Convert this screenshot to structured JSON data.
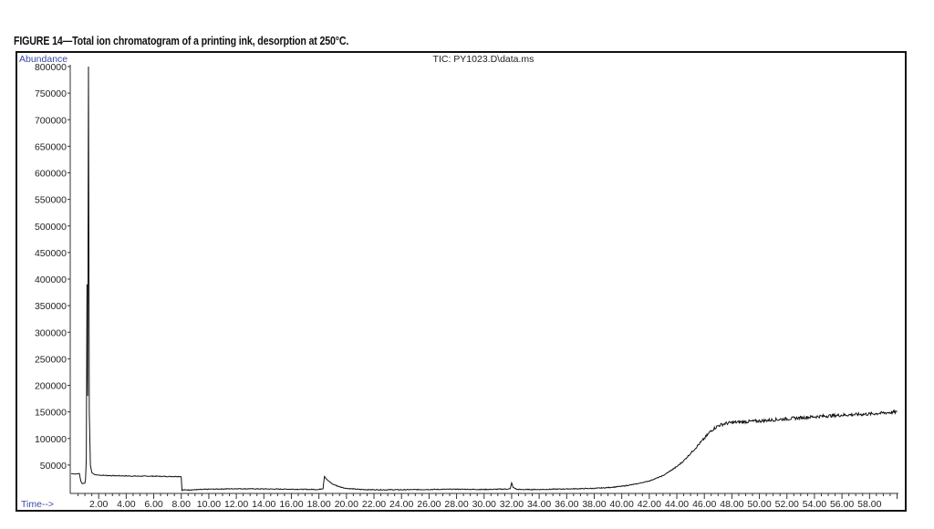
{
  "caption": "FIGURE 14—Total ion chromatogram of a printing ink, desorption at 250°C.",
  "chart_data": {
    "type": "line",
    "title": "TIC: PY1023.D\\data.ms",
    "xlabel": "Time-->",
    "ylabel": "Abundance",
    "xlim": [
      0,
      60.1
    ],
    "ylim": [
      0,
      800000
    ],
    "grid": false,
    "x_ticks": [
      "2.00",
      "4.00",
      "6.00",
      "8.00",
      "10.00",
      "12.00",
      "14.00",
      "16.00",
      "18.00",
      "20.00",
      "22.00",
      "24.00",
      "26.00",
      "28.00",
      "30.00",
      "32.00",
      "34.00",
      "36.00",
      "38.00",
      "40.00",
      "42.00",
      "44.00",
      "46.00",
      "48.00",
      "50.00",
      "52.00",
      "54.00",
      "56.00",
      "58.00"
    ],
    "y_ticks": [
      "50000",
      "100000",
      "150000",
      "200000",
      "250000",
      "300000",
      "350000",
      "400000",
      "450000",
      "500000",
      "550000",
      "600000",
      "650000",
      "700000",
      "750000",
      "800000"
    ],
    "series": [
      {
        "color": "#111111",
        "x": [
          0.0,
          0.3,
          0.6,
          0.7,
          0.8,
          1.0,
          1.05,
          1.1,
          1.15,
          1.2,
          1.26,
          1.32,
          1.4,
          1.5,
          1.7,
          2.0,
          3.0,
          4.0,
          5.0,
          6.0,
          7.0,
          7.95,
          8.0,
          8.05,
          9.0,
          10.0,
          12.0,
          14.0,
          16.0,
          18.0,
          18.3,
          18.4,
          18.6,
          19.0,
          19.5,
          20.0,
          21.0,
          22.0,
          24.0,
          26.0,
          28.0,
          30.0,
          31.9,
          32.0,
          32.1,
          32.4,
          34.0,
          36.0,
          38.0,
          39.0,
          40.0,
          41.0,
          42.0,
          43.0,
          44.0,
          44.5,
          45.0,
          45.5,
          46.0,
          46.5,
          47.0,
          47.5,
          48.0,
          50.0,
          52.0,
          54.0,
          56.0,
          58.0,
          60.0
        ],
        "y": [
          34000,
          33000,
          34000,
          20000,
          15000,
          16000,
          24000,
          60000,
          390000,
          180000,
          800000,
          150000,
          50000,
          36000,
          32000,
          31000,
          30000,
          29500,
          29000,
          29000,
          28500,
          28500,
          28000,
          3000,
          3500,
          4500,
          5500,
          5000,
          4500,
          4000,
          6000,
          29000,
          22000,
          14000,
          9000,
          6000,
          4000,
          3500,
          3500,
          4000,
          4500,
          4000,
          5000,
          17000,
          8000,
          4000,
          4000,
          5000,
          6000,
          7500,
          10000,
          14000,
          20000,
          30000,
          47000,
          58000,
          72000,
          86000,
          100000,
          115000,
          124000,
          128000,
          130000,
          133000,
          137000,
          141000,
          144000,
          146000,
          150000
        ]
      }
    ]
  }
}
